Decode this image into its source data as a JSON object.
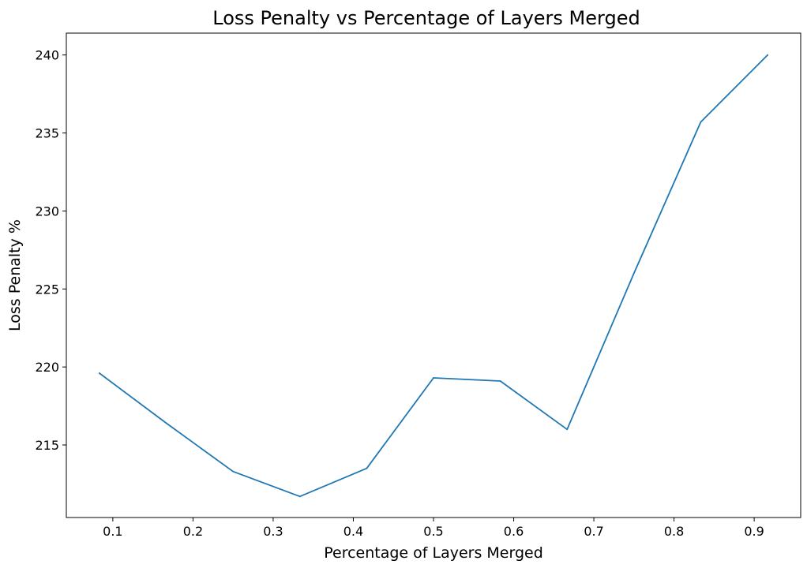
{
  "chart_data": {
    "type": "line",
    "title": "Loss Penalty vs Percentage of Layers Merged",
    "xlabel": "Percentage of Layers Merged",
    "ylabel": "Loss Penalty %",
    "xlim": [
      0.042,
      0.958
    ],
    "ylim": [
      210.35,
      241.4
    ],
    "xticks": [
      0.1,
      0.2,
      0.3,
      0.4,
      0.5,
      0.6,
      0.7,
      0.8,
      0.9
    ],
    "xtick_labels": [
      "0.1",
      "0.2",
      "0.3",
      "0.4",
      "0.5",
      "0.6",
      "0.7",
      "0.8",
      "0.9"
    ],
    "yticks": [
      215,
      220,
      225,
      230,
      235,
      240
    ],
    "ytick_labels": [
      "215",
      "220",
      "225",
      "230",
      "235",
      "240"
    ],
    "grid": false,
    "series": [
      {
        "color": "#1f77b4",
        "x": [
          0.0833,
          0.1667,
          0.25,
          0.3333,
          0.4167,
          0.5,
          0.5833,
          0.6667,
          0.75,
          0.8333,
          0.9167
        ],
        "y": [
          219.6,
          216.4,
          213.3,
          211.7,
          213.5,
          219.3,
          219.1,
          216.0,
          226.0,
          235.7,
          240.0
        ]
      }
    ]
  }
}
